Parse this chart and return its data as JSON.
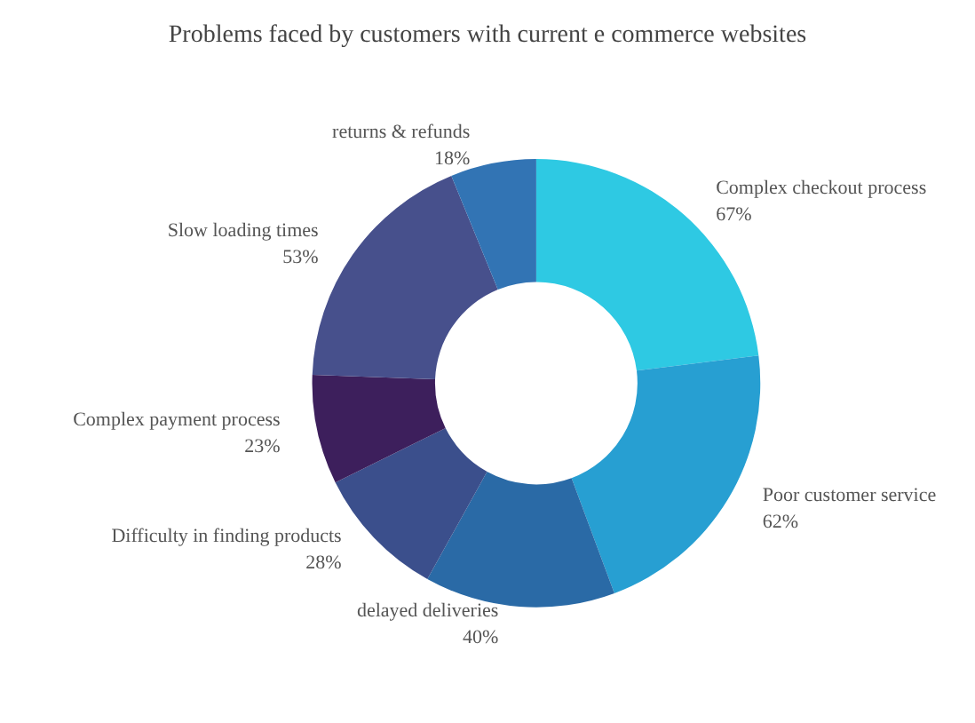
{
  "chart_data": {
    "type": "donut",
    "title": "Problems faced by customers with current e commerce websites",
    "categories": [
      "Complex checkout process",
      "Poor customer service",
      "delayed deliveries",
      "Difficulty in finding products",
      "Complex payment process",
      "Slow loading times",
      "returns & refunds"
    ],
    "values": [
      67,
      62,
      40,
      28,
      23,
      53,
      18
    ],
    "value_labels": [
      "67%",
      "62%",
      "40%",
      "28%",
      "23%",
      "53%",
      "18%"
    ],
    "colors": [
      "#2ec9e3",
      "#279fd2",
      "#2a6aa6",
      "#3b4f8c",
      "#3d1f5c",
      "#47508c",
      "#3274b4"
    ],
    "legend": false
  }
}
